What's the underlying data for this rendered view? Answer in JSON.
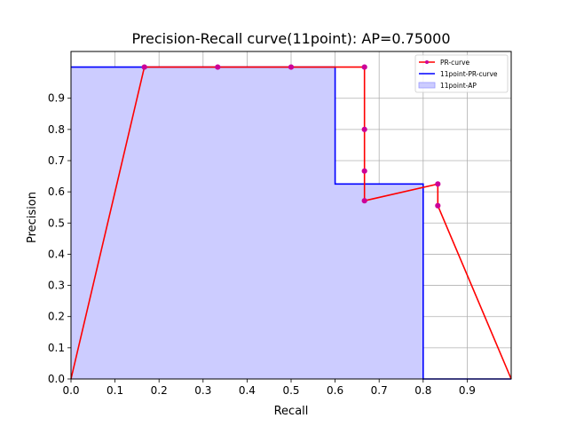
{
  "chart_data": {
    "type": "line",
    "title": "Precision-Recall curve(11point): AP=0.75000",
    "xlabel": "Recall",
    "ylabel": "Precision",
    "xlim": [
      0,
      1
    ],
    "ylim": [
      0,
      1.05
    ],
    "grid": true,
    "x_ticks": [
      "0.0",
      "0.1",
      "0.2",
      "0.3",
      "0.4",
      "0.5",
      "0.6",
      "0.7",
      "0.8",
      "0.9"
    ],
    "y_ticks": [
      "0.0",
      "0.1",
      "0.2",
      "0.3",
      "0.4",
      "0.5",
      "0.6",
      "0.7",
      "0.8",
      "0.9"
    ],
    "legend_position": "top-right",
    "series": [
      {
        "name": "PR-curve",
        "color": "#ff0000",
        "marker_color": "#cc0099",
        "points": [
          [
            0.0,
            0.0
          ],
          [
            0.1667,
            1.0
          ],
          [
            0.3333,
            1.0
          ],
          [
            0.5,
            1.0
          ],
          [
            0.6667,
            1.0
          ],
          [
            0.6667,
            0.8
          ],
          [
            0.6667,
            0.6667
          ],
          [
            0.6667,
            0.5714
          ],
          [
            0.8333,
            0.625
          ],
          [
            0.8333,
            0.5556
          ],
          [
            1.0,
            0.0
          ]
        ],
        "marker_points": [
          [
            0.1667,
            1.0
          ],
          [
            0.3333,
            1.0
          ],
          [
            0.5,
            1.0
          ],
          [
            0.6667,
            1.0
          ],
          [
            0.6667,
            0.8
          ],
          [
            0.6667,
            0.6667
          ],
          [
            0.6667,
            0.5714
          ],
          [
            0.8333,
            0.625
          ],
          [
            0.8333,
            0.5556
          ]
        ]
      },
      {
        "name": "11point-PR-curve",
        "color": "#0000ff",
        "points": [
          [
            0.0,
            1.0
          ],
          [
            0.6,
            1.0
          ],
          [
            0.6,
            0.625
          ],
          [
            0.8,
            0.625
          ],
          [
            0.8,
            0.0
          ],
          [
            1.0,
            0.0
          ]
        ]
      },
      {
        "name": "11point-AP",
        "type": "area",
        "color": "#ccccff",
        "points": [
          [
            0.0,
            1.0
          ],
          [
            0.6,
            1.0
          ],
          [
            0.6,
            0.625
          ],
          [
            0.8,
            0.625
          ],
          [
            0.8,
            0.0
          ]
        ]
      }
    ]
  }
}
